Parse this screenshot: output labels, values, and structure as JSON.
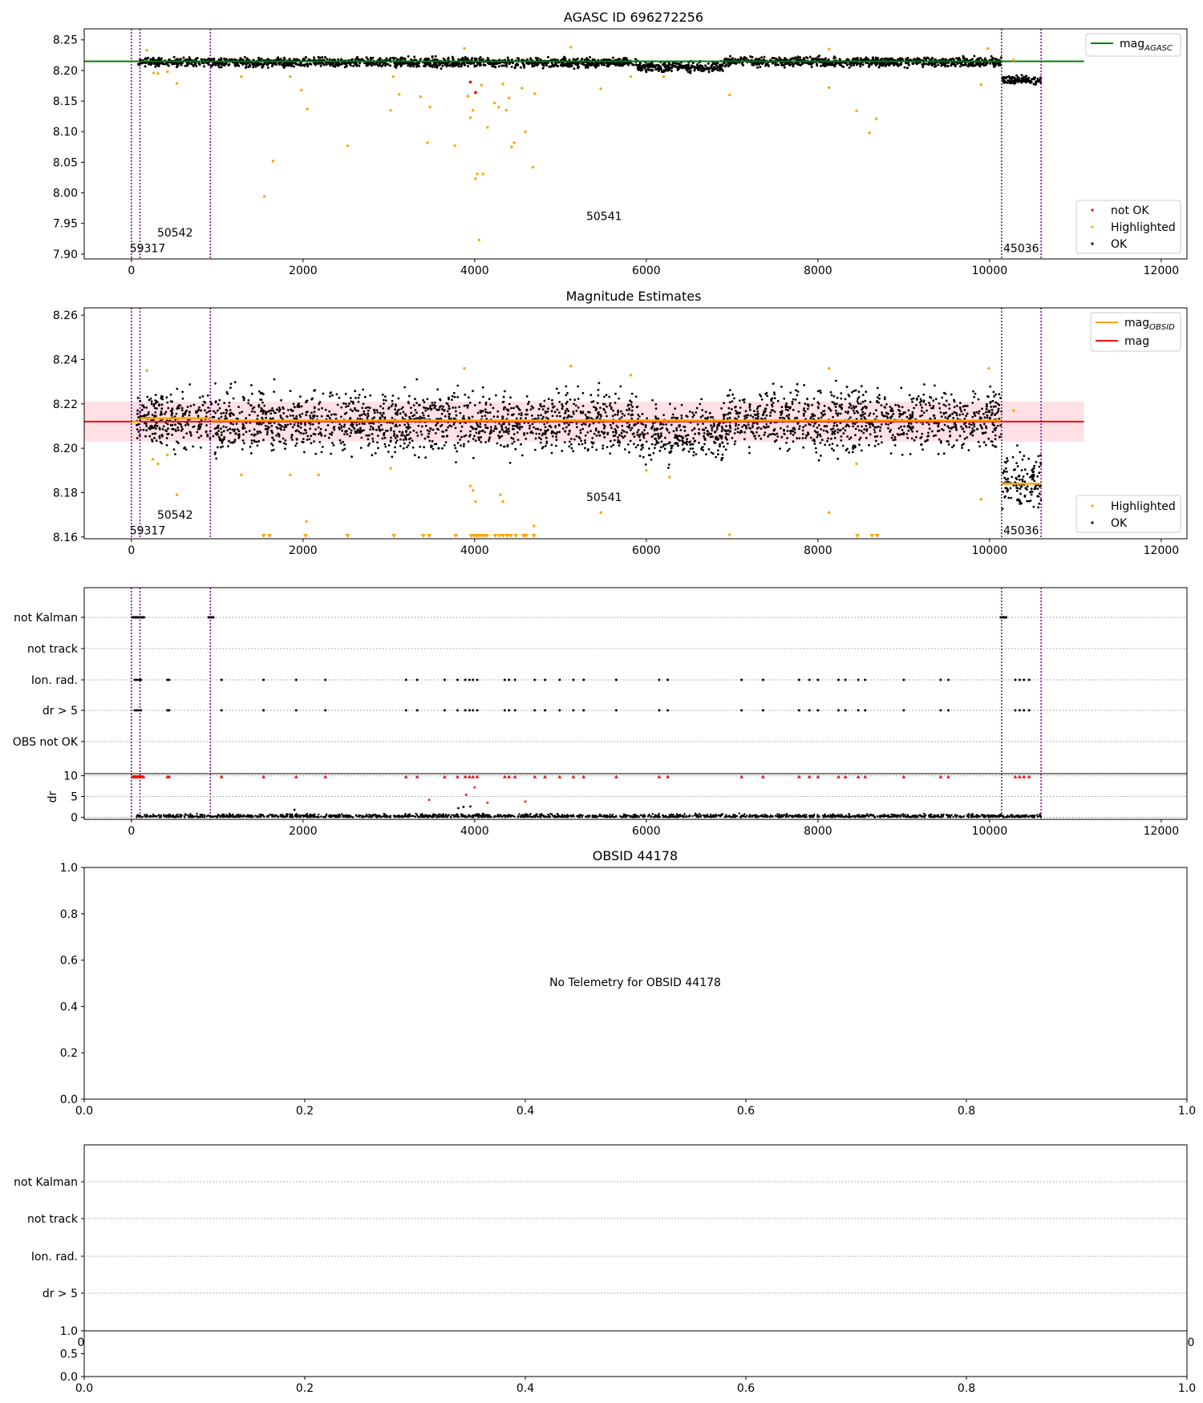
{
  "chart_data": [
    {
      "panel": "agasc",
      "type": "scatter",
      "title": "AGASC ID 696272256",
      "xticks": [
        0,
        2000,
        4000,
        6000,
        8000,
        10000,
        12000
      ],
      "yticks": [
        "8.25",
        "8.20",
        "8.15",
        "8.10",
        "8.05",
        "8.00",
        "7.95",
        "7.90"
      ],
      "xlim": [
        -550,
        12300
      ],
      "ylim": [
        7.892,
        8.268
      ],
      "legend_top": [
        {
          "label": "mag",
          "sub": "AGASC",
          "color": "#008000"
        }
      ],
      "legend_bottom": [
        {
          "label": "not OK",
          "color": "#ff0000"
        },
        {
          "label": "Highlighted",
          "color": "#ffa500"
        },
        {
          "label": "OK",
          "color": "#000000"
        }
      ],
      "mag_agasc": 8.215,
      "obsids": [
        {
          "label": "59317",
          "start": 0,
          "end": 100
        },
        {
          "label": "50542",
          "start": 100,
          "end": 920
        },
        {
          "label": "50541",
          "start": 920,
          "end": 10140
        },
        {
          "label": "45036",
          "start": 10140,
          "end": 10600
        }
      ],
      "ok_segments": [
        {
          "x": [
            80,
            920
          ],
          "y": 8.214,
          "spread": 0.006
        },
        {
          "x": [
            920,
            5900
          ],
          "y": 8.213,
          "spread": 0.007
        },
        {
          "x": [
            5900,
            6900
          ],
          "y": 8.206,
          "spread": 0.007
        },
        {
          "x": [
            6900,
            10140
          ],
          "y": 8.214,
          "spread": 0.007
        },
        {
          "x": [
            10150,
            10600
          ],
          "y": 8.184,
          "spread": 0.006
        }
      ],
      "highlighted": [
        [
          180,
          8.233
        ],
        [
          260,
          8.196
        ],
        [
          310,
          8.195
        ],
        [
          420,
          8.198
        ],
        [
          530,
          8.179
        ],
        [
          1280,
          8.19
        ],
        [
          1550,
          7.994
        ],
        [
          1650,
          8.052
        ],
        [
          1850,
          8.19
        ],
        [
          1980,
          8.168
        ],
        [
          2050,
          8.137
        ],
        [
          2520,
          8.077
        ],
        [
          3020,
          8.135
        ],
        [
          3050,
          8.19
        ],
        [
          3120,
          8.161
        ],
        [
          3370,
          8.157
        ],
        [
          3450,
          8.082
        ],
        [
          3480,
          8.14
        ],
        [
          3770,
          8.077
        ],
        [
          3880,
          8.236
        ],
        [
          3920,
          8.158
        ],
        [
          3950,
          8.123
        ],
        [
          3980,
          8.135
        ],
        [
          4010,
          8.023
        ],
        [
          4030,
          8.031
        ],
        [
          4050,
          7.923
        ],
        [
          4080,
          8.176
        ],
        [
          4100,
          8.031
        ],
        [
          4150,
          8.107
        ],
        [
          4230,
          8.147
        ],
        [
          4280,
          8.14
        ],
        [
          4330,
          8.178
        ],
        [
          4370,
          8.135
        ],
        [
          4400,
          8.155
        ],
        [
          4430,
          8.075
        ],
        [
          4460,
          8.082
        ],
        [
          4550,
          8.171
        ],
        [
          4590,
          8.1
        ],
        [
          4680,
          8.042
        ],
        [
          4700,
          8.162
        ],
        [
          5120,
          8.238
        ],
        [
          5470,
          8.17
        ],
        [
          5820,
          8.19
        ],
        [
          6200,
          8.19
        ],
        [
          6970,
          8.16
        ],
        [
          8130,
          8.172
        ],
        [
          8130,
          8.235
        ],
        [
          8450,
          8.134
        ],
        [
          8600,
          8.098
        ],
        [
          8680,
          8.121
        ],
        [
          9900,
          8.177
        ],
        [
          9980,
          8.236
        ],
        [
          10280,
          8.217
        ]
      ],
      "not_ok": [
        [
          3950,
          8.181
        ],
        [
          4010,
          8.164
        ]
      ],
      "labels_y": {
        "59317": 7.91,
        "50542": 7.935,
        "50541": 7.962,
        "45036": 7.91
      }
    },
    {
      "panel": "magnitude",
      "type": "scatter",
      "title": "Magnitude Estimates",
      "xticks": [
        0,
        2000,
        4000,
        6000,
        8000,
        10000,
        12000
      ],
      "yticks": [
        "8.26",
        "8.24",
        "8.22",
        "8.20",
        "8.18",
        "8.16"
      ],
      "xlim": [
        -550,
        12300
      ],
      "ylim": [
        8.1592,
        8.2633
      ],
      "legend_top": [
        {
          "label": "mag",
          "sub": "OBSID",
          "color": "#ffa500"
        },
        {
          "label": "mag",
          "sub": "",
          "color": "#ff0000"
        }
      ],
      "legend_bottom": [
        {
          "label": "Highlighted",
          "color": "#ffa500"
        },
        {
          "label": "OK",
          "color": "#000000"
        }
      ],
      "mag": 8.212,
      "mag_band": [
        8.203,
        8.221
      ],
      "mag_obsid": [
        {
          "x": [
            0,
            100
          ],
          "y": 8.212
        },
        {
          "x": [
            100,
            920
          ],
          "y": 8.2135
        },
        {
          "x": [
            920,
            10140
          ],
          "y": 8.2125
        },
        {
          "x": [
            10140,
            10600
          ],
          "y": 8.184
        }
      ],
      "highlighted": [
        [
          180,
          8.235
        ],
        [
          250,
          8.195
        ],
        [
          310,
          8.193
        ],
        [
          420,
          8.197
        ],
        [
          530,
          8.179
        ],
        [
          1280,
          8.188
        ],
        [
          1850,
          8.188
        ],
        [
          2040,
          8.167
        ],
        [
          2180,
          8.188
        ],
        [
          3020,
          8.191
        ],
        [
          3880,
          8.236
        ],
        [
          3950,
          8.183
        ],
        [
          3980,
          8.181
        ],
        [
          4010,
          8.176
        ],
        [
          4300,
          8.179
        ],
        [
          4330,
          8.176
        ],
        [
          4690,
          8.165
        ],
        [
          5120,
          8.237
        ],
        [
          5470,
          8.171
        ],
        [
          5820,
          8.233
        ],
        [
          6000,
          8.19
        ],
        [
          6270,
          8.187
        ],
        [
          6970,
          8.161
        ],
        [
          8130,
          8.236
        ],
        [
          8130,
          8.171
        ],
        [
          8450,
          8.193
        ],
        [
          9900,
          8.177
        ],
        [
          9990,
          8.236
        ],
        [
          10280,
          8.217
        ]
      ],
      "floor_markers": [
        1540,
        1610,
        2030,
        2520,
        3060,
        3400,
        3470,
        3780,
        3960,
        3990,
        4020,
        4050,
        4080,
        4110,
        4140,
        4240,
        4290,
        4330,
        4380,
        4420,
        4480,
        4570,
        4600,
        4690,
        8460,
        8630,
        8690
      ],
      "labels_y": {
        "59317": 8.163,
        "50542": 8.17,
        "50541": 8.178,
        "45036": 8.163
      }
    },
    {
      "panel": "flags",
      "type": "scatter",
      "categories": [
        "not Kalman",
        "not track",
        "Ion. rad.",
        "dr > 5",
        "OBS not OK"
      ],
      "xticks": [
        0,
        2000,
        4000,
        6000,
        8000,
        10000,
        12000
      ],
      "xlim": [
        -550,
        12300
      ],
      "flag_events": [
        40,
        65,
        90,
        110,
        420,
        440,
        1050,
        1540,
        1920,
        2260,
        3200,
        3330,
        3650,
        3800,
        3890,
        3940,
        3980,
        4030,
        4350,
        4400,
        4470,
        4700,
        4820,
        4990,
        5150,
        5270,
        5650,
        6150,
        6250,
        7110,
        7360,
        7780,
        7900,
        8000,
        8240,
        8320,
        8470,
        8550,
        9000,
        9430,
        9520,
        10300,
        10350,
        10400,
        10460
      ],
      "kalman_segments": [
        [
          10,
          150
        ],
        [
          900,
          960
        ],
        [
          10130,
          10200
        ]
      ]
    },
    {
      "panel": "dr",
      "type": "scatter",
      "ylabel": "dr",
      "yticks": [
        "10",
        "5",
        "0"
      ],
      "xticks": [
        0,
        2000,
        4000,
        6000,
        8000,
        10000,
        12000
      ],
      "xlim": [
        -550,
        12300
      ],
      "ylim": [
        -0.5,
        10.5
      ],
      "bumps": [
        [
          3470,
          4.2
        ],
        [
          3810,
          2.2
        ],
        [
          3900,
          5.4
        ],
        [
          3950,
          2.6
        ],
        [
          4000,
          7.2
        ],
        [
          4150,
          3.5
        ],
        [
          4590,
          3.8
        ],
        [
          3870,
          2.5
        ],
        [
          1900,
          1.8
        ]
      ]
    },
    {
      "panel": "obsid44178",
      "type": "scatter",
      "title": "OBSID 44178",
      "message": "No Telemetry for OBSID 44178",
      "xticks": [
        "0.0",
        "0.2",
        "0.4",
        "0.6",
        "0.8",
        "1.0"
      ],
      "yticks": [
        "1.0",
        "0.8",
        "0.6",
        "0.4",
        "0.2",
        "0.0"
      ]
    },
    {
      "panel": "flags_empty",
      "type": "scatter",
      "categories": [
        "not Kalman",
        "not track",
        "Ion. rad.",
        "dr > 5"
      ],
      "xtick_partial": [
        "0",
        "0"
      ]
    },
    {
      "panel": "bottom_small",
      "type": "scatter",
      "xticks": [
        "0.0",
        "0.2",
        "0.4",
        "0.6",
        "0.8",
        "1.0"
      ],
      "yticks": [
        "1.0",
        "0.5",
        "0.0"
      ]
    }
  ]
}
